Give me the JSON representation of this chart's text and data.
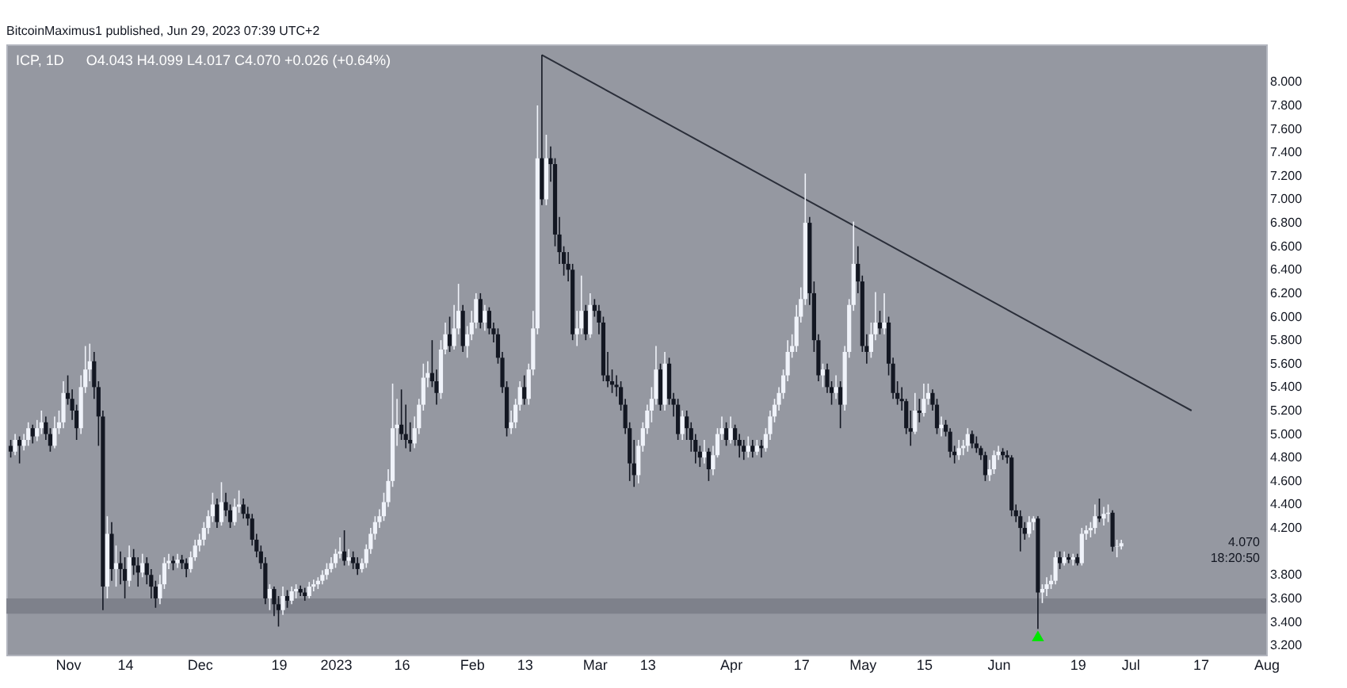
{
  "chart_data": {
    "type": "candlestick",
    "title": "ICP, 1D",
    "subtitle": "O4.043 H4.099 L4.017 C4.070 +0.026 (+0.64%)",
    "annotations": [
      "4.070",
      "18:20:50",
      "BitcoinMaximus1 published, Jun 29, 2023 07:39 UTC+2"
    ],
    "colors": [
      "#131722",
      "#f0f3fa",
      "#131722",
      "#f0f3fa",
      "#f0f3fa",
      "#131722",
      "#f0f3fa",
      "#f0f3fa",
      "#131722",
      "#131722",
      "#f0f3fa",
      "#f0f3fa",
      "#f0f3fa",
      "#131722",
      "#131722",
      "#131722",
      "#f0f3fa",
      "#f0f3fa",
      "#f0f3fa",
      "#131722",
      "#131722",
      "#131722",
      "#f0f3fa",
      "#131722",
      "#f0f3fa",
      "#131722",
      "#131722",
      "#f0f3fa",
      "#131722",
      "#131722",
      "#f0f3fa",
      "#131722",
      "#131722",
      "#131722",
      "#f0f3fa",
      "#f0f3fa",
      "#f0f3fa",
      "#131722",
      "#f0f3fa",
      "#131722",
      "#131722",
      "#f0f3fa",
      "#f0f3fa",
      "#f0f3fa",
      "#f0f3fa",
      "#f0f3fa",
      "#f0f3fa",
      "#131722",
      "#f0f3fa",
      "#131722",
      "#131722",
      "#f0f3fa",
      "#f0f3fa",
      "#131722",
      "#131722",
      "#131722",
      "#131722",
      "#131722",
      "#131722",
      "#f0f3fa",
      "#131722",
      "#131722",
      "#f0f3fa",
      "#131722",
      "#f0f3fa",
      "#f0f3fa",
      "#131722",
      "#131722",
      "#f0f3fa",
      "#f0f3fa",
      "#f0f3fa",
      "#f0f3fa",
      "#f0f3fa",
      "#f0f3fa",
      "#f0f3fa",
      "#f0f3fa",
      "#131722",
      "#f0f3fa",
      "#131722",
      "#131722",
      "#f0f3fa",
      "#f0f3fa",
      "#f0f3fa",
      "#f0f3fa",
      "#f0f3fa",
      "#f0f3fa",
      "#f0f3fa",
      "#f0f3fa",
      "#f0f3fa",
      "#131722",
      "#131722",
      "#131722",
      "#f0f3fa",
      "#f0f3fa",
      "#f0f3fa",
      "#f0f3fa",
      "#131722",
      "#131722",
      "#f0f3fa",
      "#f0f3fa",
      "#131722",
      "#f0f3fa",
      "#f0f3fa",
      "#131722",
      "#f0f3fa",
      "#f0f3fa",
      "#f0f3fa",
      "#131722",
      "#f0f3fa",
      "#131722",
      "#131722",
      "#131722",
      "#131722",
      "#131722",
      "#f0f3fa",
      "#f0f3fa",
      "#f0f3fa",
      "#131722",
      "#f0f3fa",
      "#f0f3fa",
      "#f0f3fa",
      "#131722",
      "#f0f3fa",
      "#131722",
      "#131722",
      "#131722",
      "#131722",
      "#131722",
      "#131722",
      "#f0f3fa",
      "#f0f3fa",
      "#131722",
      "#f0f3fa",
      "#131722",
      "#131722",
      "#131722",
      "#131722",
      "#131722",
      "#131722",
      "#131722",
      "#131722",
      "#131722",
      "#131722",
      "#f0f3fa",
      "#f0f3fa",
      "#f0f3fa",
      "#f0f3fa",
      "#f0f3fa",
      "#131722",
      "#f0f3fa",
      "#131722",
      "#131722",
      "#131722",
      "#f0f3fa",
      "#131722",
      "#131722",
      "#131722",
      "#131722",
      "#f0f3fa",
      "#131722",
      "#f0f3fa",
      "#f0f3fa",
      "#f0f3fa",
      "#131722",
      "#f0f3fa",
      "#131722",
      "#131722",
      "#131722",
      "#f0f3fa",
      "#131722",
      "#f0f3fa",
      "#131722",
      "#f0f3fa",
      "#f0f3fa",
      "#f0f3fa",
      "#f0f3fa",
      "#f0f3fa",
      "#f0f3fa",
      "#f0f3fa",
      "#f0f3fa",
      "#f0f3fa",
      "#f0f3fa",
      "#131722",
      "#131722",
      "#131722",
      "#f0f3fa",
      "#131722",
      "#131722",
      "#f0f3fa",
      "#131722",
      "#f0f3fa",
      "#f0f3fa",
      "#f0f3fa",
      "#131722",
      "#131722",
      "#131722",
      "#f0f3fa",
      "#f0f3fa",
      "#131722",
      "#f0f3fa",
      "#131722",
      "#131722",
      "#131722",
      "#131722",
      "#131722",
      "#131722",
      "#f0f3fa",
      "#131722",
      "#f0f3fa",
      "#f0f3fa",
      "#131722",
      "#131722",
      "#f0f3fa",
      "#131722",
      "#131722",
      "#131722",
      "#f0f3fa",
      "#f0f3fa",
      "#f0f3fa",
      "#131722",
      "#131722",
      "#131722",
      "#131722",
      "#f0f3fa",
      "#f0f3fa",
      "#f0f3fa",
      "#131722",
      "#131722",
      "#131722",
      "#131722",
      "#131722",
      "#131722",
      "#f0f3fa",
      "#f0f3fa",
      "#131722",
      "#f0f3fa",
      "#f0f3fa",
      "#f0f3fa",
      "#f0f3fa",
      "#131722",
      "#f0f3fa",
      "#131722",
      "#f0f3fa",
      "#131722",
      "#f0f3fa",
      "#f0f3fa",
      "#f0f3fa",
      "#f0f3fa",
      "#131722",
      "#f0f3fa",
      "#f0f3fa",
      "#131722",
      "#f0f3fa",
      "#f0f3fa"
    ],
    "x": [
      "2022-10-19",
      "2022-10-20",
      "2022-10-21",
      "2022-10-22",
      "2022-10-23",
      "2022-10-24",
      "2022-10-25",
      "2022-10-26",
      "2022-10-27",
      "2022-10-28",
      "2022-10-29",
      "2022-10-30",
      "2022-10-31",
      "2022-11-01",
      "2022-11-02",
      "2022-11-03",
      "2022-11-04",
      "2022-11-05",
      "2022-11-06",
      "2022-11-07",
      "2022-11-08",
      "2022-11-09",
      "2022-11-10",
      "2022-11-11",
      "2022-11-12",
      "2022-11-13",
      "2022-11-14",
      "2022-11-15",
      "2022-11-16",
      "2022-11-17",
      "2022-11-18",
      "2022-11-19",
      "2022-11-20",
      "2022-11-21",
      "2022-11-22",
      "2022-11-23",
      "2022-11-24",
      "2022-11-25",
      "2022-11-26",
      "2022-11-27",
      "2022-11-28",
      "2022-11-29",
      "2022-11-30",
      "2022-12-01",
      "2022-12-02",
      "2022-12-03",
      "2022-12-04",
      "2022-12-05",
      "2022-12-06",
      "2022-12-07",
      "2022-12-08",
      "2022-12-09",
      "2022-12-10",
      "2022-12-11",
      "2022-12-12",
      "2022-12-13",
      "2022-12-14",
      "2022-12-15",
      "2022-12-16",
      "2022-12-17",
      "2022-12-18",
      "2022-12-19",
      "2022-12-20",
      "2022-12-21",
      "2022-12-22",
      "2022-12-23",
      "2022-12-24",
      "2022-12-25",
      "2022-12-26",
      "2022-12-27",
      "2022-12-28",
      "2022-12-29",
      "2022-12-30",
      "2022-12-31",
      "2023-01-01",
      "2023-01-02",
      "2023-01-03",
      "2023-01-04",
      "2023-01-05",
      "2023-01-06",
      "2023-01-07",
      "2023-01-08",
      "2023-01-09",
      "2023-01-10",
      "2023-01-11",
      "2023-01-12",
      "2023-01-13",
      "2023-01-14",
      "2023-01-15",
      "2023-01-16",
      "2023-01-17",
      "2023-01-18",
      "2023-01-19",
      "2023-01-20",
      "2023-01-21",
      "2023-01-22",
      "2023-01-23",
      "2023-01-24",
      "2023-01-25",
      "2023-01-26",
      "2023-01-27",
      "2023-01-28",
      "2023-01-29",
      "2023-01-30",
      "2023-01-31",
      "2023-02-01",
      "2023-02-02",
      "2023-02-03",
      "2023-02-04",
      "2023-02-05",
      "2023-02-06",
      "2023-02-07",
      "2023-02-08",
      "2023-02-09",
      "2023-02-10",
      "2023-02-11",
      "2023-02-12",
      "2023-02-13",
      "2023-02-14",
      "2023-02-15",
      "2023-02-16",
      "2023-02-17",
      "2023-02-18",
      "2023-02-19",
      "2023-02-20",
      "2023-02-21",
      "2023-02-22",
      "2023-02-23",
      "2023-02-24",
      "2023-02-25",
      "2023-02-26",
      "2023-02-27",
      "2023-02-28",
      "2023-03-01",
      "2023-03-02",
      "2023-03-03",
      "2023-03-04",
      "2023-03-05",
      "2023-03-06",
      "2023-03-07",
      "2023-03-08",
      "2023-03-09",
      "2023-03-10",
      "2023-03-11",
      "2023-03-12",
      "2023-03-13",
      "2023-03-14",
      "2023-03-15",
      "2023-03-16",
      "2023-03-17",
      "2023-03-18",
      "2023-03-19",
      "2023-03-20",
      "2023-03-21",
      "2023-03-22",
      "2023-03-23",
      "2023-03-24",
      "2023-03-25",
      "2023-03-26",
      "2023-03-27",
      "2023-03-28",
      "2023-03-29",
      "2023-03-30",
      "2023-03-31",
      "2023-04-01",
      "2023-04-02",
      "2023-04-03",
      "2023-04-04",
      "2023-04-05",
      "2023-04-06",
      "2023-04-07",
      "2023-04-08",
      "2023-04-09",
      "2023-04-10",
      "2023-04-11",
      "2023-04-12",
      "2023-04-13",
      "2023-04-14",
      "2023-04-15",
      "2023-04-16",
      "2023-04-17",
      "2023-04-18",
      "2023-04-19",
      "2023-04-20",
      "2023-04-21",
      "2023-04-22",
      "2023-04-23",
      "2023-04-24",
      "2023-04-25",
      "2023-04-26",
      "2023-04-27",
      "2023-04-28",
      "2023-04-29",
      "2023-04-30",
      "2023-05-01",
      "2023-05-02",
      "2023-05-03",
      "2023-05-04",
      "2023-05-05",
      "2023-05-06",
      "2023-05-07",
      "2023-05-08",
      "2023-05-09",
      "2023-05-10",
      "2023-05-11",
      "2023-05-12",
      "2023-05-13",
      "2023-05-14",
      "2023-05-15",
      "2023-05-16",
      "2023-05-17",
      "2023-05-18",
      "2023-05-19",
      "2023-05-20",
      "2023-05-21",
      "2023-05-22",
      "2023-05-23",
      "2023-05-24",
      "2023-05-25",
      "2023-05-26",
      "2023-05-27",
      "2023-05-28",
      "2023-05-29",
      "2023-05-30",
      "2023-05-31",
      "2023-06-01",
      "2023-06-02",
      "2023-06-03",
      "2023-06-04",
      "2023-06-05",
      "2023-06-06",
      "2023-06-07",
      "2023-06-08",
      "2023-06-09",
      "2023-06-10",
      "2023-06-11",
      "2023-06-12",
      "2023-06-13",
      "2023-06-14",
      "2023-06-15",
      "2023-06-16",
      "2023-06-17",
      "2023-06-18",
      "2023-06-19",
      "2023-06-20",
      "2023-06-21",
      "2023-06-22",
      "2023-06-23",
      "2023-06-24",
      "2023-06-25",
      "2023-06-26",
      "2023-06-27",
      "2023-06-28",
      "2023-06-29"
    ],
    "ohlc": [
      [
        4.9,
        4.95,
        4.8,
        4.85
      ],
      [
        4.85,
        5.0,
        4.82,
        4.95
      ],
      [
        4.95,
        4.98,
        4.75,
        4.9
      ],
      [
        4.9,
        5.0,
        4.86,
        4.95
      ],
      [
        4.95,
        5.1,
        4.9,
        5.05
      ],
      [
        5.05,
        5.08,
        4.92,
        4.98
      ],
      [
        4.98,
        5.12,
        4.94,
        5.05
      ],
      [
        5.05,
        5.2,
        5.0,
        5.1
      ],
      [
        5.1,
        5.15,
        4.95,
        5.0
      ],
      [
        5.0,
        5.05,
        4.85,
        4.9
      ],
      [
        4.9,
        5.15,
        4.88,
        5.05
      ],
      [
        5.05,
        5.2,
        5.0,
        5.1
      ],
      [
        5.1,
        5.45,
        5.05,
        5.35
      ],
      [
        5.35,
        5.5,
        5.25,
        5.3
      ],
      [
        5.3,
        5.38,
        5.12,
        5.2
      ],
      [
        5.2,
        5.25,
        4.95,
        5.05
      ],
      [
        5.05,
        5.5,
        5.0,
        5.4
      ],
      [
        5.4,
        5.75,
        5.35,
        5.55
      ],
      [
        5.55,
        5.77,
        5.45,
        5.62
      ],
      [
        5.62,
        5.7,
        5.3,
        5.4
      ],
      [
        5.4,
        5.45,
        4.9,
        5.15
      ],
      [
        5.15,
        5.2,
        3.5,
        3.7
      ],
      [
        3.7,
        4.3,
        3.6,
        4.15
      ],
      [
        4.15,
        4.25,
        3.75,
        3.85
      ],
      [
        3.85,
        4.05,
        3.7,
        3.9
      ],
      [
        3.9,
        4.0,
        3.72,
        3.85
      ],
      [
        3.85,
        3.95,
        3.6,
        3.75
      ],
      [
        3.75,
        4.05,
        3.7,
        3.95
      ],
      [
        3.95,
        4.02,
        3.8,
        3.88
      ],
      [
        3.88,
        3.95,
        3.7,
        3.82
      ],
      [
        3.82,
        3.98,
        3.78,
        3.9
      ],
      [
        3.9,
        3.95,
        3.72,
        3.8
      ],
      [
        3.8,
        3.85,
        3.6,
        3.7
      ],
      [
        3.7,
        3.75,
        3.52,
        3.6
      ],
      [
        3.6,
        3.8,
        3.55,
        3.72
      ],
      [
        3.72,
        3.95,
        3.68,
        3.9
      ],
      [
        3.9,
        3.98,
        3.85,
        3.92
      ],
      [
        3.92,
        3.96,
        3.84,
        3.9
      ],
      [
        3.9,
        3.98,
        3.86,
        3.93
      ],
      [
        3.93,
        3.97,
        3.85,
        3.9
      ],
      [
        3.9,
        3.94,
        3.78,
        3.85
      ],
      [
        3.85,
        4.0,
        3.82,
        3.95
      ],
      [
        3.95,
        4.1,
        3.92,
        4.05
      ],
      [
        4.05,
        4.15,
        4.0,
        4.1
      ],
      [
        4.1,
        4.25,
        4.05,
        4.2
      ],
      [
        4.2,
        4.35,
        4.15,
        4.3
      ],
      [
        4.3,
        4.5,
        4.25,
        4.4
      ],
      [
        4.4,
        4.45,
        4.2,
        4.25
      ],
      [
        4.25,
        4.59,
        4.22,
        4.42
      ],
      [
        4.42,
        4.5,
        4.3,
        4.35
      ],
      [
        4.35,
        4.4,
        4.2,
        4.25
      ],
      [
        4.25,
        4.45,
        4.22,
        4.38
      ],
      [
        4.38,
        4.52,
        4.33,
        4.4
      ],
      [
        4.4,
        4.45,
        4.28,
        4.32
      ],
      [
        4.32,
        4.38,
        4.22,
        4.28
      ],
      [
        4.28,
        4.32,
        4.05,
        4.1
      ],
      [
        4.1,
        4.15,
        3.95,
        4.0
      ],
      [
        4.0,
        4.05,
        3.85,
        3.9
      ],
      [
        3.9,
        3.95,
        3.55,
        3.6
      ],
      [
        3.6,
        3.72,
        3.5,
        3.68
      ],
      [
        3.68,
        3.7,
        3.45,
        3.55
      ],
      [
        3.55,
        3.62,
        3.36,
        3.5
      ],
      [
        3.5,
        3.7,
        3.46,
        3.62
      ],
      [
        3.62,
        3.67,
        3.52,
        3.58
      ],
      [
        3.58,
        3.7,
        3.55,
        3.66
      ],
      [
        3.66,
        3.72,
        3.6,
        3.68
      ],
      [
        3.68,
        3.71,
        3.62,
        3.65
      ],
      [
        3.65,
        3.69,
        3.58,
        3.62
      ],
      [
        3.62,
        3.74,
        3.6,
        3.7
      ],
      [
        3.7,
        3.76,
        3.66,
        3.72
      ],
      [
        3.72,
        3.78,
        3.68,
        3.75
      ],
      [
        3.75,
        3.84,
        3.72,
        3.8
      ],
      [
        3.8,
        3.9,
        3.76,
        3.85
      ],
      [
        3.85,
        3.95,
        3.82,
        3.9
      ],
      [
        3.9,
        4.02,
        3.86,
        3.98
      ],
      [
        3.98,
        4.12,
        3.94,
        4.0
      ],
      [
        4.0,
        4.18,
        3.88,
        3.92
      ],
      [
        3.92,
        4.02,
        3.88,
        3.95
      ],
      [
        3.95,
        4.0,
        3.85,
        3.9
      ],
      [
        3.9,
        3.95,
        3.8,
        3.85
      ],
      [
        3.85,
        3.94,
        3.82,
        3.9
      ],
      [
        3.9,
        4.06,
        3.86,
        4.02
      ],
      [
        4.02,
        4.2,
        3.98,
        4.15
      ],
      [
        4.15,
        4.3,
        4.1,
        4.25
      ],
      [
        4.25,
        4.36,
        4.2,
        4.3
      ],
      [
        4.3,
        4.5,
        4.26,
        4.42
      ],
      [
        4.42,
        4.7,
        4.38,
        4.6
      ],
      [
        4.6,
        5.43,
        4.55,
        5.05
      ],
      [
        5.05,
        5.3,
        4.9,
        5.08
      ],
      [
        5.08,
        5.38,
        4.95,
        5.0
      ],
      [
        5.0,
        5.25,
        4.88,
        4.95
      ],
      [
        4.95,
        5.1,
        4.85,
        4.92
      ],
      [
        4.92,
        5.15,
        4.88,
        5.05
      ],
      [
        5.05,
        5.3,
        5.0,
        5.25
      ],
      [
        5.25,
        5.6,
        5.2,
        5.48
      ],
      [
        5.48,
        5.62,
        5.4,
        5.52
      ],
      [
        5.52,
        5.8,
        5.4,
        5.45
      ],
      [
        5.45,
        5.55,
        5.25,
        5.35
      ],
      [
        5.35,
        5.8,
        5.3,
        5.72
      ],
      [
        5.72,
        5.95,
        5.68,
        5.85
      ],
      [
        5.85,
        6.0,
        5.7,
        5.75
      ],
      [
        5.75,
        6.1,
        5.72,
        5.9
      ],
      [
        5.9,
        6.28,
        5.85,
        6.05
      ],
      [
        6.05,
        6.1,
        5.7,
        5.75
      ],
      [
        5.75,
        5.92,
        5.65,
        5.85
      ],
      [
        5.85,
        6.05,
        5.8,
        5.95
      ],
      [
        5.95,
        6.2,
        5.9,
        6.15
      ],
      [
        6.15,
        6.2,
        5.9,
        5.95
      ],
      [
        5.95,
        6.1,
        5.88,
        6.05
      ],
      [
        6.05,
        6.08,
        5.85,
        5.9
      ],
      [
        5.9,
        5.95,
        5.78,
        5.85
      ],
      [
        5.85,
        5.9,
        5.6,
        5.65
      ],
      [
        5.65,
        5.7,
        5.35,
        5.4
      ],
      [
        5.4,
        5.45,
        4.98,
        5.05
      ],
      [
        5.05,
        5.2,
        5.0,
        5.1
      ],
      [
        5.1,
        5.3,
        5.05,
        5.25
      ],
      [
        5.25,
        5.45,
        5.2,
        5.4
      ],
      [
        5.4,
        5.5,
        5.25,
        5.3
      ],
      [
        5.3,
        5.6,
        5.25,
        5.55
      ],
      [
        5.55,
        6.05,
        5.5,
        5.9
      ],
      [
        5.9,
        7.8,
        5.85,
        7.35
      ],
      [
        7.35,
        8.23,
        6.95,
        7.0
      ],
      [
        7.0,
        7.55,
        6.95,
        7.35
      ],
      [
        7.35,
        7.45,
        7.15,
        7.3
      ],
      [
        7.3,
        7.35,
        6.6,
        6.7
      ],
      [
        6.7,
        6.85,
        6.45,
        6.55
      ],
      [
        6.55,
        6.6,
        6.35,
        6.45
      ],
      [
        6.45,
        6.55,
        6.3,
        6.4
      ],
      [
        6.4,
        6.45,
        5.8,
        5.85
      ],
      [
        5.85,
        6.05,
        5.75,
        5.9
      ],
      [
        5.9,
        6.35,
        5.85,
        6.05
      ],
      [
        6.05,
        6.1,
        5.8,
        5.85
      ],
      [
        5.85,
        6.2,
        5.82,
        6.1
      ],
      [
        6.1,
        6.15,
        6.0,
        6.05
      ],
      [
        6.05,
        6.1,
        5.85,
        5.95
      ],
      [
        5.95,
        6.0,
        5.45,
        5.5
      ],
      [
        5.5,
        5.7,
        5.4,
        5.45
      ],
      [
        5.45,
        5.55,
        5.35,
        5.42
      ],
      [
        5.42,
        5.5,
        5.32,
        5.4
      ],
      [
        5.4,
        5.45,
        5.2,
        5.25
      ],
      [
        5.25,
        5.3,
        5.0,
        5.05
      ],
      [
        5.05,
        5.1,
        4.6,
        4.75
      ],
      [
        4.75,
        4.95,
        4.55,
        4.65
      ],
      [
        4.65,
        4.95,
        4.58,
        4.9
      ],
      [
        4.9,
        5.1,
        4.85,
        5.05
      ],
      [
        5.05,
        5.25,
        5.0,
        5.2
      ],
      [
        5.2,
        5.4,
        5.1,
        5.3
      ],
      [
        5.3,
        5.75,
        5.25,
        5.55
      ],
      [
        5.55,
        5.6,
        5.2,
        5.25
      ],
      [
        5.25,
        5.7,
        5.2,
        5.6
      ],
      [
        5.6,
        5.65,
        5.25,
        5.3
      ],
      [
        5.3,
        5.35,
        5.15,
        5.25
      ],
      [
        5.25,
        5.3,
        4.95,
        5.0
      ],
      [
        5.0,
        5.2,
        4.95,
        5.15
      ],
      [
        5.15,
        5.2,
        4.95,
        5.05
      ],
      [
        5.05,
        5.1,
        4.85,
        4.95
      ],
      [
        4.95,
        5.0,
        4.75,
        4.85
      ],
      [
        4.85,
        4.9,
        4.72,
        4.8
      ],
      [
        4.8,
        4.95,
        4.75,
        4.85
      ],
      [
        4.85,
        4.88,
        4.6,
        4.7
      ],
      [
        4.7,
        4.9,
        4.65,
        4.82
      ],
      [
        4.82,
        5.05,
        4.8,
        5.0
      ],
      [
        5.0,
        5.15,
        4.95,
        5.05
      ],
      [
        5.05,
        5.1,
        4.9,
        4.95
      ],
      [
        4.95,
        5.15,
        4.92,
        5.05
      ],
      [
        5.05,
        5.08,
        4.9,
        4.95
      ],
      [
        4.95,
        5.0,
        4.8,
        4.9
      ],
      [
        4.9,
        4.95,
        4.78,
        4.85
      ],
      [
        4.85,
        4.98,
        4.8,
        4.9
      ],
      [
        4.9,
        4.95,
        4.8,
        4.85
      ],
      [
        4.85,
        4.95,
        4.82,
        4.9
      ],
      [
        4.9,
        4.95,
        4.8,
        4.88
      ],
      [
        4.88,
        5.05,
        4.85,
        5.0
      ],
      [
        5.0,
        5.2,
        4.95,
        5.15
      ],
      [
        5.15,
        5.3,
        5.1,
        5.25
      ],
      [
        5.25,
        5.4,
        5.2,
        5.35
      ],
      [
        5.35,
        5.55,
        5.3,
        5.5
      ],
      [
        5.5,
        5.8,
        5.45,
        5.7
      ],
      [
        5.7,
        5.85,
        5.65,
        5.75
      ],
      [
        5.75,
        6.1,
        5.7,
        6.0
      ],
      [
        6.0,
        6.25,
        5.95,
        6.15
      ],
      [
        6.15,
        7.22,
        6.1,
        6.8
      ],
      [
        6.8,
        6.85,
        6.1,
        6.2
      ],
      [
        6.2,
        6.3,
        5.7,
        5.8
      ],
      [
        5.8,
        5.85,
        5.45,
        5.5
      ],
      [
        5.5,
        5.6,
        5.4,
        5.55
      ],
      [
        5.55,
        5.6,
        5.35,
        5.4
      ],
      [
        5.4,
        5.45,
        5.25,
        5.35
      ],
      [
        5.35,
        5.5,
        5.3,
        5.4
      ],
      [
        5.4,
        5.45,
        5.05,
        5.25
      ],
      [
        5.25,
        5.75,
        5.2,
        5.7
      ],
      [
        5.7,
        6.15,
        5.65,
        6.1
      ],
      [
        6.1,
        6.81,
        6.05,
        6.45
      ],
      [
        6.45,
        6.6,
        6.2,
        6.3
      ],
      [
        6.3,
        6.35,
        5.7,
        5.75
      ],
      [
        5.75,
        5.85,
        5.6,
        5.7
      ],
      [
        5.7,
        5.95,
        5.65,
        5.85
      ],
      [
        5.85,
        6.21,
        5.8,
        5.95
      ],
      [
        5.95,
        6.05,
        5.85,
        5.9
      ],
      [
        5.9,
        6.2,
        5.85,
        5.95
      ],
      [
        5.95,
        6.0,
        5.5,
        5.6
      ],
      [
        5.6,
        5.65,
        5.3,
        5.35
      ],
      [
        5.35,
        5.45,
        5.25,
        5.3
      ],
      [
        5.3,
        5.4,
        5.2,
        5.28
      ],
      [
        5.28,
        5.3,
        5.0,
        5.05
      ],
      [
        5.05,
        5.2,
        4.9,
        5.02
      ],
      [
        5.02,
        5.35,
        5.0,
        5.2
      ],
      [
        5.2,
        5.3,
        5.1,
        5.18
      ],
      [
        5.18,
        5.43,
        5.15,
        5.3
      ],
      [
        5.3,
        5.43,
        5.25,
        5.35
      ],
      [
        5.35,
        5.38,
        5.2,
        5.25
      ],
      [
        5.25,
        5.3,
        5.0,
        5.05
      ],
      [
        5.05,
        5.15,
        4.98,
        5.08
      ],
      [
        5.08,
        5.12,
        4.98,
        5.02
      ],
      [
        5.02,
        5.05,
        4.8,
        4.85
      ],
      [
        4.85,
        4.9,
        4.75,
        4.82
      ],
      [
        4.82,
        4.95,
        4.78,
        4.88
      ],
      [
        4.88,
        4.95,
        4.82,
        4.9
      ],
      [
        4.9,
        5.05,
        4.85,
        5.0
      ],
      [
        5.0,
        5.03,
        4.88,
        4.92
      ],
      [
        4.92,
        4.98,
        4.84,
        4.88
      ],
      [
        4.88,
        4.9,
        4.78,
        4.82
      ],
      [
        4.82,
        4.85,
        4.6,
        4.65
      ],
      [
        4.65,
        4.78,
        4.6,
        4.7
      ],
      [
        4.7,
        4.86,
        4.66,
        4.82
      ],
      [
        4.82,
        4.9,
        4.78,
        4.85
      ],
      [
        4.85,
        4.88,
        4.78,
        4.82
      ],
      [
        4.82,
        4.86,
        4.75,
        4.8
      ],
      [
        4.8,
        4.82,
        4.3,
        4.35
      ],
      [
        4.35,
        4.4,
        4.25,
        4.3
      ],
      [
        4.3,
        4.35,
        4.0,
        4.2
      ],
      [
        4.2,
        4.25,
        4.1,
        4.15
      ],
      [
        4.15,
        4.3,
        4.12,
        4.25
      ],
      [
        4.25,
        4.3,
        4.18,
        4.28
      ],
      [
        4.28,
        4.3,
        3.34,
        3.65
      ],
      [
        3.65,
        3.72,
        3.56,
        3.68
      ],
      [
        3.68,
        3.78,
        3.62,
        3.72
      ],
      [
        3.72,
        3.8,
        3.68,
        3.75
      ],
      [
        3.75,
        4.0,
        3.72,
        3.95
      ],
      [
        3.95,
        4.0,
        3.85,
        3.9
      ],
      [
        3.9,
        4.0,
        3.88,
        3.95
      ],
      [
        3.95,
        3.98,
        3.9,
        3.93
      ],
      [
        3.93,
        3.98,
        3.88,
        3.95
      ],
      [
        3.95,
        3.98,
        3.88,
        3.9
      ],
      [
        3.9,
        4.2,
        3.88,
        4.15
      ],
      [
        4.15,
        4.22,
        4.1,
        4.18
      ],
      [
        4.18,
        4.25,
        4.12,
        4.2
      ],
      [
        4.2,
        4.4,
        4.15,
        4.3
      ],
      [
        4.3,
        4.45,
        4.25,
        4.28
      ],
      [
        4.28,
        4.38,
        4.22,
        4.32
      ],
      [
        4.32,
        4.4,
        4.25,
        4.33
      ],
      [
        4.33,
        4.35,
        4.0,
        4.04
      ],
      [
        4.04,
        4.1,
        3.95,
        4.043
      ],
      [
        4.043,
        4.099,
        4.017,
        4.07
      ]
    ],
    "series": [
      {
        "type": "line",
        "x": [
          "2023-02-17",
          "2023-07-15"
        ],
        "values": [
          8.23,
          5.2
        ],
        "color": "#2a2e39"
      },
      {
        "type": "scatter",
        "marker": "triangle",
        "x": [
          "2023-06-10"
        ],
        "values": [
          3.28
        ],
        "color": "#00e600"
      }
    ],
    "bands": [
      {
        "axis": "y",
        "from": 3.47,
        "to": 3.6,
        "color": "#7b7e88"
      }
    ],
    "xlim": [
      "2022-10-18",
      "2023-08-01"
    ],
    "xticks": [
      {
        "value": "2022-11-01",
        "label": "Nov"
      },
      {
        "value": "2022-11-14",
        "label": "14"
      },
      {
        "value": "2022-12-01",
        "label": "Dec"
      },
      {
        "value": "2022-12-19",
        "label": "19"
      },
      {
        "value": "2023-01-01",
        "label": "2023"
      },
      {
        "value": "2023-01-16",
        "label": "16"
      },
      {
        "value": "2023-02-01",
        "label": "Feb"
      },
      {
        "value": "2023-02-13",
        "label": "13"
      },
      {
        "value": "2023-03-01",
        "label": "Mar"
      },
      {
        "value": "2023-03-13",
        "label": "13"
      },
      {
        "value": "2023-04-01",
        "label": "Apr"
      },
      {
        "value": "2023-04-17",
        "label": "17"
      },
      {
        "value": "2023-05-01",
        "label": "May"
      },
      {
        "value": "2023-05-15",
        "label": "15"
      },
      {
        "value": "2023-06-01",
        "label": "Jun"
      },
      {
        "value": "2023-06-19",
        "label": "19"
      },
      {
        "value": "2023-07-01",
        "label": "Jul"
      },
      {
        "value": "2023-07-17",
        "label": "17"
      },
      {
        "value": "2023-08-01",
        "label": "Aug"
      }
    ],
    "ylim": [
      3.12,
      8.32
    ],
    "yticks": [
      {
        "value": 3.2,
        "label": "3.200"
      },
      {
        "value": 3.4,
        "label": "3.400"
      },
      {
        "value": 3.6,
        "label": "3.600"
      },
      {
        "value": 3.8,
        "label": "3.800"
      },
      {
        "value": 4.2,
        "label": "4.200"
      },
      {
        "value": 4.4,
        "label": "4.400"
      },
      {
        "value": 4.6,
        "label": "4.600"
      },
      {
        "value": 4.8,
        "label": "4.800"
      },
      {
        "value": 5.0,
        "label": "5.000"
      },
      {
        "value": 5.2,
        "label": "5.200"
      },
      {
        "value": 5.4,
        "label": "5.400"
      },
      {
        "value": 5.6,
        "label": "5.600"
      },
      {
        "value": 5.8,
        "label": "5.800"
      },
      {
        "value": 6.0,
        "label": "6.000"
      },
      {
        "value": 6.2,
        "label": "6.200"
      },
      {
        "value": 6.4,
        "label": "6.400"
      },
      {
        "value": 6.6,
        "label": "6.600"
      },
      {
        "value": 6.8,
        "label": "6.800"
      },
      {
        "value": 7.0,
        "label": "7.000"
      },
      {
        "value": 7.2,
        "label": "7.200"
      },
      {
        "value": 7.4,
        "label": "7.400"
      },
      {
        "value": 7.6,
        "label": "7.600"
      },
      {
        "value": 7.8,
        "label": "7.800"
      },
      {
        "value": 8.0,
        "label": "8.000"
      }
    ],
    "grid": false
  }
}
